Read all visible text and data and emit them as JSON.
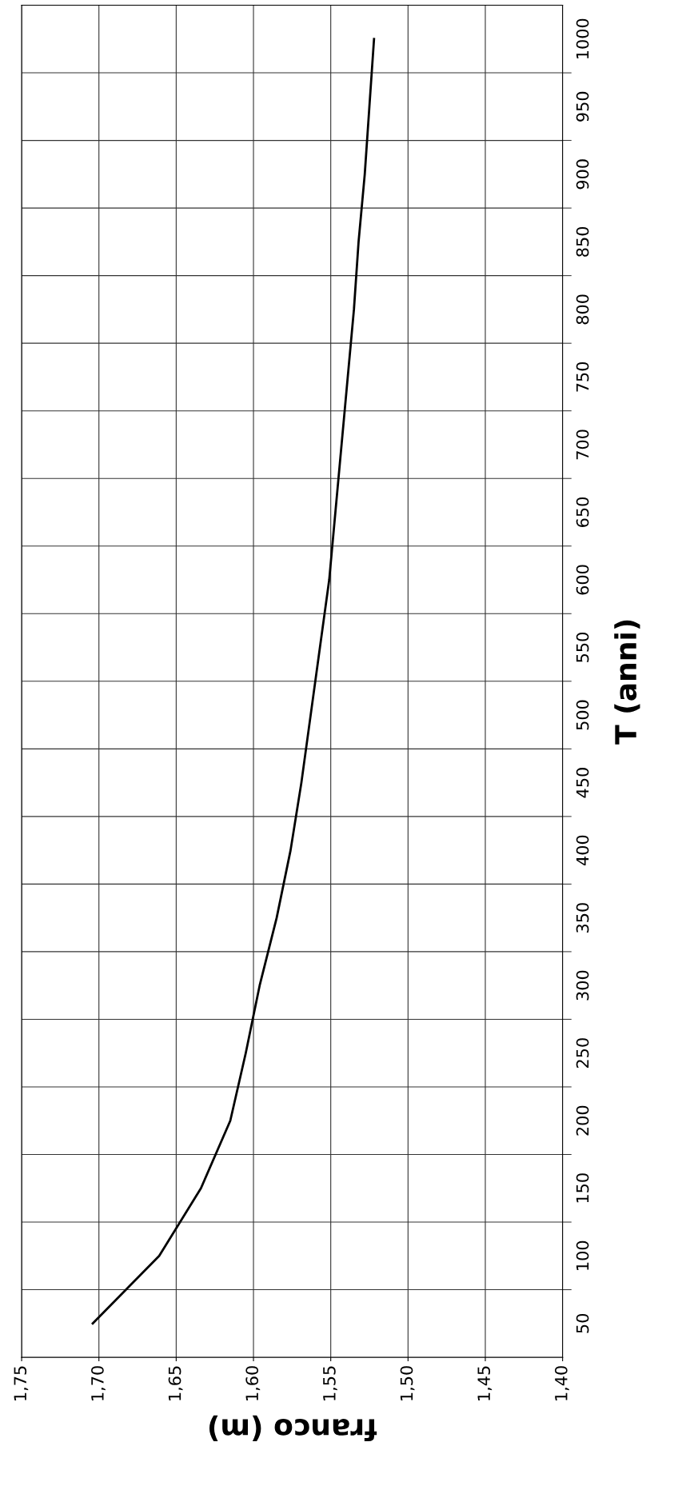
{
  "chart_data": {
    "type": "line",
    "xlabel": "franco (m)",
    "ylabel": "T (anni)",
    "series": [
      {
        "color": "#000000",
        "x": [
          1.704,
          1.661,
          1.634,
          1.615,
          1.605,
          1.596,
          1.585,
          1.576,
          1.569,
          1.563,
          1.557,
          1.551,
          1.547,
          1.543,
          1.539,
          1.535,
          1.532,
          1.528,
          1.525,
          1.522
        ],
        "values": [
          50,
          100,
          150,
          200,
          250,
          300,
          350,
          400,
          450,
          500,
          550,
          600,
          650,
          700,
          750,
          800,
          850,
          900,
          950,
          1000
        ]
      }
    ],
    "xlim": [
      1.75,
      1.4
    ],
    "xticks": [
      {
        "value": 1.75,
        "label": "1,75"
      },
      {
        "value": 1.7,
        "label": "1,70"
      },
      {
        "value": 1.65,
        "label": "1,65"
      },
      {
        "value": 1.6,
        "label": "1,60"
      },
      {
        "value": 1.55,
        "label": "1,55"
      },
      {
        "value": 1.5,
        "label": "1,50"
      },
      {
        "value": 1.45,
        "label": "1,45"
      },
      {
        "value": 1.4,
        "label": "1,40"
      }
    ],
    "ylim": [
      25,
      1025
    ],
    "yticks": [
      50,
      100,
      150,
      200,
      250,
      300,
      350,
      400,
      450,
      500,
      550,
      600,
      650,
      700,
      750,
      800,
      850,
      900,
      950,
      1000,
      {
        "value": 75,
        "label": null
      },
      {
        "value": 125,
        "label": null
      },
      {
        "value": 175,
        "label": null
      },
      {
        "value": 225,
        "label": null
      },
      {
        "value": 275,
        "label": null
      },
      {
        "value": 325,
        "label": null
      },
      {
        "value": 375,
        "label": null
      },
      {
        "value": 425,
        "label": null
      },
      {
        "value": 475,
        "label": null
      },
      {
        "value": 525,
        "label": null
      },
      {
        "value": 575,
        "label": null
      },
      {
        "value": 625,
        "label": null
      },
      {
        "value": 675,
        "label": null
      },
      {
        "value": 725,
        "label": null
      },
      {
        "value": 775,
        "label": null
      },
      {
        "value": 825,
        "label": null
      },
      {
        "value": 875,
        "label": null
      },
      {
        "value": 925,
        "label": null
      },
      {
        "value": 975,
        "label": null
      }
    ],
    "grid": true,
    "marker": "none",
    "line_style": "solid"
  }
}
